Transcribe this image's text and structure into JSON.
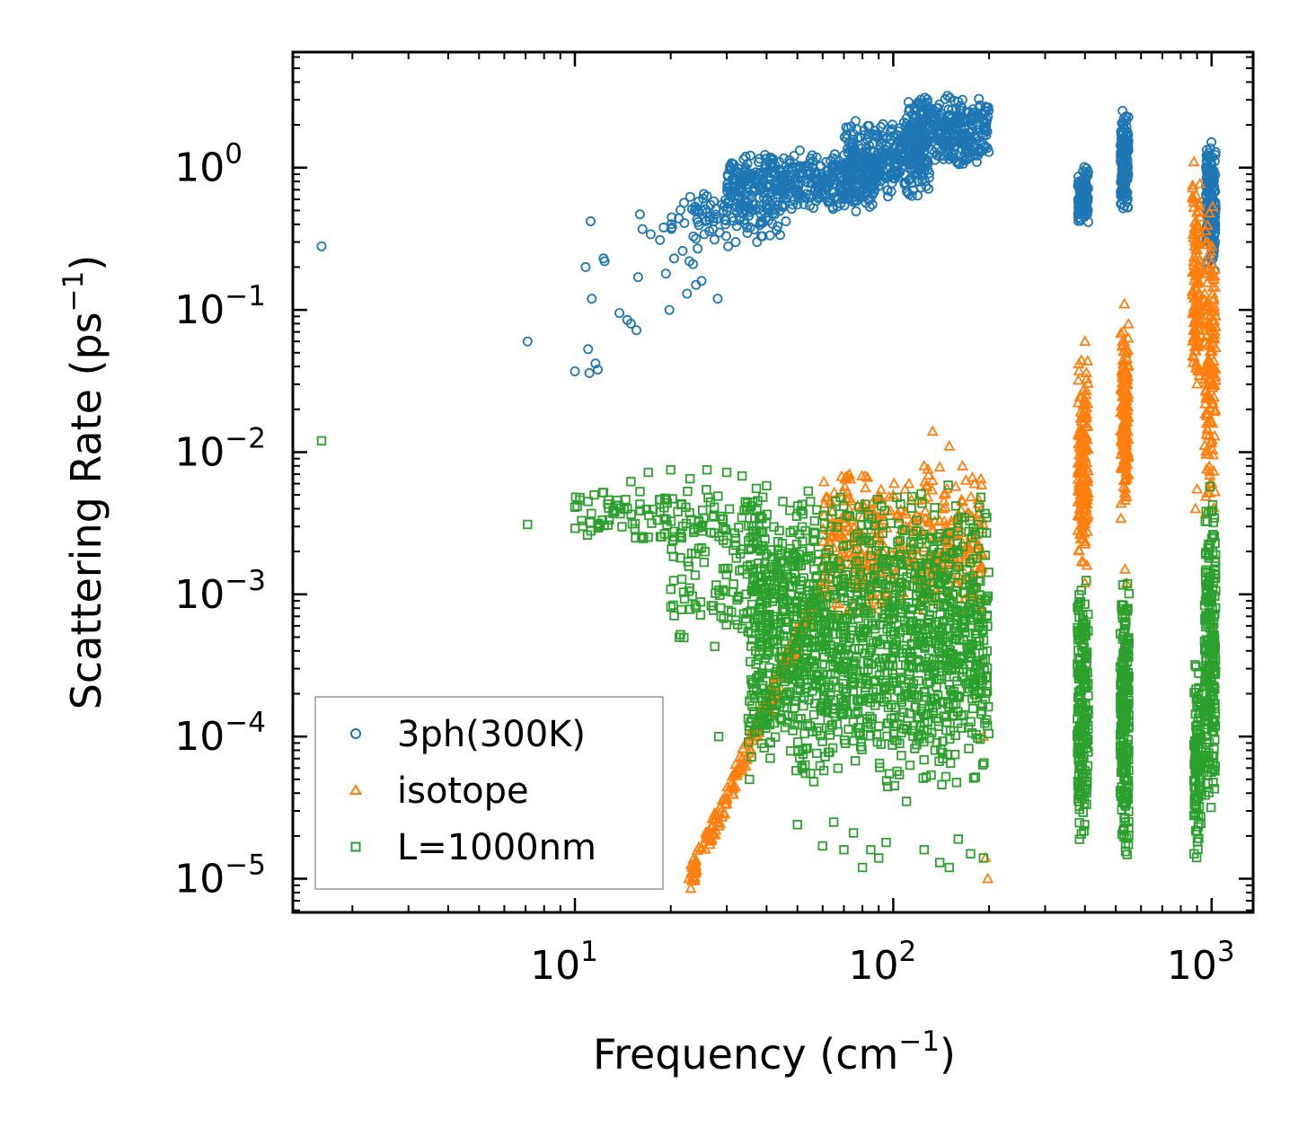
{
  "chart_data": {
    "type": "scatter",
    "title": "",
    "xlabel": "Frequency",
    "xlabel_unit": "cm",
    "xlabel_unit_exp": "−1",
    "ylabel": "Scattering Rate",
    "ylabel_unit": "ps",
    "ylabel_unit_exp": "−1",
    "xscale": "log",
    "yscale": "log",
    "xlim": [
      1.3,
      1350
    ],
    "ylim": [
      5.8e-06,
      6.5
    ],
    "x_ticks": [
      {
        "value": 10,
        "base": "10",
        "exp": "1"
      },
      {
        "value": 100,
        "base": "10",
        "exp": "2"
      },
      {
        "value": 1000,
        "base": "10",
        "exp": "3"
      }
    ],
    "y_ticks": [
      {
        "value": 1,
        "base": "10",
        "exp": "0"
      },
      {
        "value": 0.1,
        "base": "10",
        "exp": "−1"
      },
      {
        "value": 0.01,
        "base": "10",
        "exp": "−2"
      },
      {
        "value": 0.001,
        "base": "10",
        "exp": "−3"
      },
      {
        "value": 0.0001,
        "base": "10",
        "exp": "−4"
      },
      {
        "value": 1e-05,
        "base": "10",
        "exp": "−5"
      }
    ],
    "legend_position": "lower-left",
    "series": [
      {
        "name": "3ph(300K)",
        "marker": "circle",
        "color": "#1f77b4",
        "points": [
          [
            1.6,
            0.28
          ],
          [
            7.1,
            0.06
          ],
          [
            10,
            0.037
          ],
          [
            10.8,
            0.2
          ],
          [
            11,
            0.053
          ],
          [
            11.2,
            0.42
          ],
          [
            11.1,
            0.036
          ],
          [
            11.3,
            0.12
          ],
          [
            11.6,
            0.042
          ],
          [
            11.8,
            0.038
          ],
          [
            12.3,
            0.23
          ],
          [
            12.4,
            0.22
          ],
          [
            13.8,
            0.095
          ],
          [
            14.6,
            0.085
          ],
          [
            15,
            0.08
          ],
          [
            15.6,
            0.072
          ],
          [
            15.8,
            0.17
          ],
          [
            16,
            0.47
          ],
          [
            16.3,
            0.37
          ],
          [
            17.3,
            0.34
          ],
          [
            18.5,
            0.31
          ],
          [
            19,
            0.38
          ],
          [
            19.3,
            0.18
          ],
          [
            19.8,
            0.1
          ],
          [
            20.2,
            0.38
          ],
          [
            20.5,
            0.23
          ],
          [
            21.2,
            0.44
          ],
          [
            21.8,
            0.26
          ],
          [
            22.5,
            0.13
          ],
          [
            22.9,
            0.22
          ],
          [
            23.5,
            0.21
          ],
          [
            24,
            0.15
          ],
          [
            24.3,
            0.27
          ],
          [
            25,
            0.16
          ],
          [
            25.5,
            0.34
          ],
          [
            26.5,
            0.45
          ],
          [
            27.3,
            0.58
          ],
          [
            28.1,
            0.12
          ],
          [
            28.5,
            0.35
          ],
          [
            29,
            0.55
          ],
          [
            29.7,
            0.4
          ],
          [
            30.3,
            0.28
          ],
          [
            31,
            0.62
          ],
          [
            32,
            0.3
          ],
          [
            33,
            0.45
          ],
          [
            34,
            0.65
          ],
          [
            35.5,
            0.38
          ],
          [
            37,
            0.55
          ],
          [
            38.5,
            0.33
          ],
          [
            40,
            0.6
          ],
          [
            42,
            0.48
          ],
          [
            44,
            0.7
          ],
          [
            46,
            0.42
          ],
          [
            48,
            0.75
          ],
          [
            50,
            0.55
          ],
          [
            52,
            0.9
          ],
          [
            55,
            0.62
          ],
          [
            58,
            0.8
          ],
          [
            62,
            0.72
          ],
          [
            66,
            1.05
          ],
          [
            70,
            0.6
          ],
          [
            75,
            0.85
          ],
          [
            80,
            1.2
          ],
          [
            86,
            0.55
          ],
          [
            92,
            1.5
          ],
          [
            98,
            1.0
          ],
          [
            105,
            1.9
          ],
          [
            112,
            0.65
          ],
          [
            118,
            2.3
          ],
          [
            125,
            1.6
          ],
          [
            132,
            2.6
          ],
          [
            140,
            1.8
          ],
          [
            148,
            3.2
          ],
          [
            155,
            1.4
          ],
          [
            162,
            2.2
          ],
          [
            170,
            1.7
          ],
          [
            178,
            2.0
          ],
          [
            186,
            2.3
          ],
          [
            195,
            2.1
          ]
        ],
        "clusters": [
          {
            "x": [
              20,
              45
            ],
            "y": [
              0.28,
              0.75
            ],
            "n": 90
          },
          {
            "x": [
              30,
              90
            ],
            "y": [
              0.48,
              1.35
            ],
            "n": 460
          },
          {
            "x": [
              70,
              130
            ],
            "y": [
              0.6,
              2.2
            ],
            "n": 340
          },
          {
            "x": [
              110,
              200
            ],
            "y": [
              1.0,
              3.3
            ],
            "n": 320
          },
          {
            "x": [
              380,
              410
            ],
            "y": [
              0.39,
              1.05
            ],
            "n": 120
          },
          {
            "x": [
              518,
              548
            ],
            "y": [
              0.45,
              2.8
            ],
            "n": 150
          },
          {
            "x": [
              960,
              1030
            ],
            "y": [
              0.17,
              1.7
            ],
            "n": 170
          }
        ]
      },
      {
        "name": "isotope",
        "marker": "triangle",
        "color": "#ff7f0e",
        "points": [
          [
            22.8,
            1e-05
          ],
          [
            24,
            1.35e-05
          ],
          [
            26,
            2e-05
          ],
          [
            28,
            2.8e-05
          ],
          [
            30,
            3.7e-05
          ],
          [
            33,
            6e-05
          ],
          [
            36,
            0.0001
          ],
          [
            40,
            0.00018
          ],
          [
            45,
            0.0003
          ],
          [
            50,
            0.0006
          ],
          [
            57,
            0.001
          ],
          [
            65,
            0.0018
          ],
          [
            75,
            0.0025
          ],
          [
            88,
            0.0032
          ],
          [
            100,
            0.005
          ],
          [
            112,
            0.006
          ],
          [
            125,
            0.008
          ],
          [
            133,
            0.014
          ],
          [
            150,
            0.011
          ],
          [
            165,
            0.008
          ],
          [
            180,
            0.006
          ],
          [
            192,
            0.0001
          ],
          [
            195,
            1.4e-05
          ],
          [
            198,
            1e-05
          ],
          [
            400,
            0.06
          ],
          [
            388,
            0.0045
          ],
          [
            400,
            0.0012
          ],
          [
            532,
            0.11
          ],
          [
            535,
            0.0015
          ],
          [
            540,
            0.0012
          ],
          [
            880,
            1.1
          ],
          [
            900,
            0.0055
          ],
          [
            890,
            0.004
          ],
          [
            1000,
            0.19
          ],
          [
            980,
            0.013
          ]
        ],
        "clusters": [
          {
            "x": [
              23,
              60
            ],
            "y": [
              1e-05,
              0.0012
            ],
            "n": 220,
            "trend": true
          },
          {
            "x": [
              60,
              192
            ],
            "y": [
              0.0006,
              0.009
            ],
            "n": 420
          },
          {
            "x": [
              380,
              410
            ],
            "y": [
              0.0015,
              0.05
            ],
            "n": 170
          },
          {
            "x": [
              518,
              548
            ],
            "y": [
              0.003,
              0.09
            ],
            "n": 170
          },
          {
            "x": [
              870,
              920
            ],
            "y": [
              0.02,
              1.0
            ],
            "n": 130
          },
          {
            "x": [
              950,
              1030
            ],
            "y": [
              0.0035,
              0.6
            ],
            "n": 150
          }
        ]
      },
      {
        "name": "L=1000nm",
        "marker": "square",
        "color": "#2ca02c",
        "points": [
          [
            1.6,
            0.012
          ],
          [
            7.1,
            0.0031
          ],
          [
            10,
            0.0041
          ],
          [
            10.5,
            0.0033
          ],
          [
            11,
            0.0045
          ],
          [
            11.5,
            0.005
          ],
          [
            12.3,
            0.0052
          ],
          [
            13.5,
            0.0042
          ],
          [
            15,
            0.0062
          ],
          [
            16,
            0.0043
          ],
          [
            17,
            0.0072
          ],
          [
            18.5,
            0.0038
          ],
          [
            20,
            0.0075
          ],
          [
            21.5,
            0.0027
          ],
          [
            23,
            0.0065
          ],
          [
            24.5,
            0.0021
          ],
          [
            26,
            0.0075
          ],
          [
            27.5,
            0.00043
          ],
          [
            28.3,
            0.0001
          ],
          [
            28.8,
            0.0007
          ],
          [
            30,
            0.0072
          ],
          [
            31,
            0.00075
          ],
          [
            33.5,
            0.0068
          ],
          [
            36,
            0.00085
          ],
          [
            38,
            0.00011
          ],
          [
            40,
            0.0058
          ],
          [
            45,
            0.0045
          ],
          [
            50,
            2.4e-05
          ],
          [
            55,
            5.5e-05
          ],
          [
            60,
            1.7e-05
          ],
          [
            65,
            2.5e-05
          ],
          [
            70,
            1.6e-05
          ],
          [
            75,
            2.1e-05
          ],
          [
            80,
            1.2e-05
          ],
          [
            85,
            1.6e-05
          ],
          [
            90,
            1.4e-05
          ],
          [
            95,
            1.8e-05
          ],
          [
            110,
            3.5e-05
          ],
          [
            125,
            1.6e-05
          ],
          [
            140,
            1.3e-05
          ],
          [
            150,
            1.2e-05
          ],
          [
            160,
            1.9e-05
          ],
          [
            175,
            1.5e-05
          ],
          [
            192,
            1.4e-05
          ],
          [
            196,
            0.0009
          ],
          [
            197,
            0.0004
          ]
        ],
        "clusters": [
          {
            "x": [
              10,
              40
            ],
            "y": [
              0.0022,
              0.0058
            ],
            "n": 120
          },
          {
            "x": [
              20,
              45
            ],
            "y": [
              0.0004,
              0.004
            ],
            "n": 120
          },
          {
            "x": [
              35,
              200
            ],
            "y": [
              4e-05,
              0.006
            ],
            "n": 1500
          },
          {
            "x": [
              378,
              410
            ],
            "y": [
              1.6e-05,
              0.0014
            ],
            "n": 210
          },
          {
            "x": [
              516,
              550
            ],
            "y": [
              1.2e-05,
              0.0015
            ],
            "n": 230
          },
          {
            "x": [
              880,
              930
            ],
            "y": [
              1.2e-05,
              0.00035
            ],
            "n": 120
          },
          {
            "x": [
              950,
              1030
            ],
            "y": [
              3e-05,
              0.0062
            ],
            "n": 230
          }
        ]
      }
    ]
  }
}
